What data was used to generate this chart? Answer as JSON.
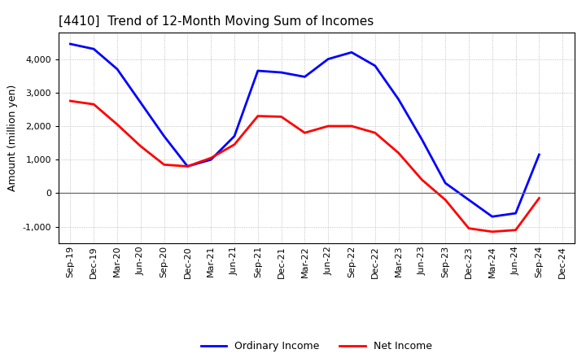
{
  "title": "[4410]  Trend of 12-Month Moving Sum of Incomes",
  "ylabel": "Amount (million yen)",
  "x_labels": [
    "Sep-19",
    "Dec-19",
    "Mar-20",
    "Jun-20",
    "Sep-20",
    "Dec-20",
    "Mar-21",
    "Jun-21",
    "Sep-21",
    "Dec-21",
    "Mar-22",
    "Jun-22",
    "Sep-22",
    "Dec-22",
    "Mar-23",
    "Jun-23",
    "Sep-23",
    "Dec-23",
    "Mar-24",
    "Jun-24",
    "Sep-24",
    "Dec-24"
  ],
  "ordinary_income": [
    4450,
    4300,
    3700,
    2700,
    1700,
    800,
    1000,
    1700,
    3650,
    3600,
    3470,
    4000,
    4200,
    3800,
    2800,
    1600,
    300,
    -200,
    -700,
    -600,
    1150,
    null
  ],
  "net_income": [
    2750,
    2650,
    2050,
    1400,
    850,
    800,
    1050,
    1450,
    2300,
    2280,
    1800,
    2000,
    2000,
    1800,
    1200,
    400,
    -200,
    -1050,
    -1150,
    -1100,
    -150,
    null
  ],
  "ordinary_income_color": "#0000ff",
  "net_income_color": "#ff0000",
  "background_color": "#ffffff",
  "grid_color": "#b0b0b0",
  "ylim": [
    -1500,
    4800
  ],
  "yticks": [
    -1000,
    0,
    1000,
    2000,
    3000,
    4000
  ],
  "legend_ordinary": "Ordinary Income",
  "legend_net": "Net Income",
  "line_width": 2.0,
  "title_fontsize": 11,
  "ylabel_fontsize": 9,
  "tick_fontsize": 8
}
